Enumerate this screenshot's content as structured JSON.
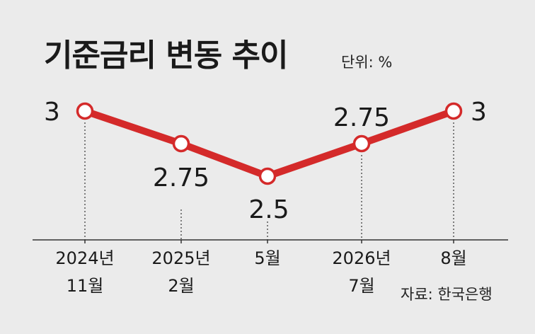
{
  "chart_data": {
    "type": "line",
    "title": "기준금리 변동 추이",
    "unit_label": "단위: %",
    "source": "자료: 한국은행",
    "categories": [
      [
        "2024년",
        "11월"
      ],
      [
        "2025년",
        "2월"
      ],
      [
        "5월"
      ],
      [
        "2026년",
        "7월"
      ],
      [
        "8월"
      ]
    ],
    "values": [
      3,
      2.75,
      2.5,
      2.75,
      3
    ],
    "data_labels": [
      "3",
      "2.75",
      "2.5",
      "2.75",
      "3"
    ],
    "xlabel": "",
    "ylabel": "",
    "ylim": [
      2.5,
      3
    ],
    "grid": false,
    "colors": {
      "line": "#d42a2a",
      "marker_fill": "#ffffff",
      "background": "#ebebeb",
      "text": "#1a1a1a"
    }
  }
}
